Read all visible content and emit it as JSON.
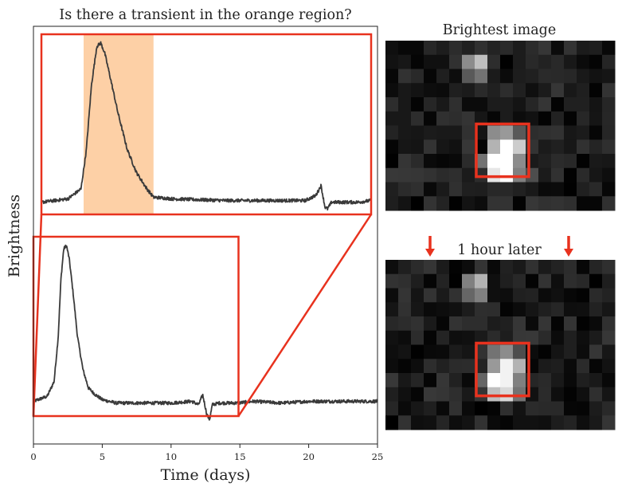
{
  "chart_data": [
    {
      "type": "line",
      "title": "Is there a transient in the orange region?",
      "xlabel": "Time (days)",
      "ylabel": "Brightness",
      "xlim": [
        0,
        25
      ],
      "x_ticks": [
        "0",
        "5",
        "10",
        "15",
        "20",
        "25"
      ],
      "y_ticks": [],
      "grid": false,
      "highlight_region": {
        "x_start": 3.2,
        "x_end": 8.5,
        "color": "#fdd0a6"
      },
      "zoom_box": {
        "x_start": 0,
        "x_end": 14.9,
        "color": "#e8321e"
      },
      "series": [
        {
          "label": "lower curve (full series)",
          "color": "#3a3a3a",
          "x": [
            0,
            1,
            1.5,
            1.8,
            2.0,
            2.2,
            2.4,
            2.6,
            2.9,
            3.2,
            3.6,
            4.0,
            4.5,
            5.0,
            5.5,
            6,
            8,
            10,
            11.5,
            12.0,
            12.3,
            12.6,
            12.8,
            13.0,
            13.5,
            14.9,
            16,
            18,
            20,
            22,
            24,
            25
          ],
          "y": [
            0.06,
            0.09,
            0.18,
            0.45,
            0.8,
            0.98,
            1.0,
            0.92,
            0.7,
            0.45,
            0.25,
            0.14,
            0.1,
            0.07,
            0.06,
            0.05,
            0.05,
            0.05,
            0.06,
            0.04,
            0.1,
            -0.02,
            -0.05,
            0.04,
            0.05,
            0.05,
            0.06,
            0.05,
            0.06,
            0.06,
            0.06,
            0.06
          ]
        },
        {
          "label": "upper curve (zoomed)",
          "color": "#3a3a3a",
          "x": [
            0,
            2.0,
            3.0,
            3.4,
            3.8,
            4.2,
            4.5,
            4.8,
            5.2,
            5.8,
            6.5,
            7.2,
            8.0,
            8.5,
            10,
            14,
            18,
            20,
            20.8,
            21.2,
            21.5,
            21.7,
            22,
            24,
            25
          ],
          "y": [
            0.04,
            0.06,
            0.12,
            0.35,
            0.75,
            0.98,
            1.0,
            0.94,
            0.8,
            0.58,
            0.36,
            0.22,
            0.12,
            0.07,
            0.06,
            0.05,
            0.05,
            0.05,
            0.08,
            0.14,
            0.01,
            0.0,
            0.04,
            0.04,
            0.05
          ]
        }
      ]
    },
    {
      "type": "heatmap",
      "title": "Brightest image",
      "rows": 12,
      "cols": 18,
      "box": {
        "row_start": 6,
        "row_end": 9,
        "col_start": 7,
        "col_end": 11,
        "color": "#e8321e"
      },
      "bright_pixels": [
        {
          "row": 1,
          "col": 6,
          "value": 0.55
        },
        {
          "row": 1,
          "col": 7,
          "value": 0.75
        },
        {
          "row": 2,
          "col": 6,
          "value": 0.35
        },
        {
          "row": 2,
          "col": 7,
          "value": 0.45
        },
        {
          "row": 6,
          "col": 8,
          "value": 0.55
        },
        {
          "row": 6,
          "col": 9,
          "value": 0.6
        },
        {
          "row": 6,
          "col": 10,
          "value": 0.35
        },
        {
          "row": 7,
          "col": 8,
          "value": 0.7
        },
        {
          "row": 7,
          "col": 9,
          "value": 1.0
        },
        {
          "row": 7,
          "col": 10,
          "value": 0.8
        },
        {
          "row": 8,
          "col": 7,
          "value": 0.45
        },
        {
          "row": 8,
          "col": 8,
          "value": 1.0
        },
        {
          "row": 8,
          "col": 9,
          "value": 1.0
        },
        {
          "row": 8,
          "col": 10,
          "value": 0.55
        },
        {
          "row": 9,
          "col": 8,
          "value": 0.9
        },
        {
          "row": 9,
          "col": 9,
          "value": 1.0
        },
        {
          "row": 9,
          "col": 10,
          "value": 0.5
        },
        {
          "row": 9,
          "col": 11,
          "value": 0.3
        }
      ]
    },
    {
      "type": "heatmap",
      "title": "1 hour later",
      "rows": 12,
      "cols": 18,
      "box": {
        "row_start": 6,
        "row_end": 9,
        "col_start": 7,
        "col_end": 11,
        "color": "#e8321e"
      },
      "arrow_color": "#e8321e",
      "bright_pixels": [
        {
          "row": 1,
          "col": 6,
          "value": 0.5
        },
        {
          "row": 1,
          "col": 7,
          "value": 0.7
        },
        {
          "row": 2,
          "col": 6,
          "value": 0.4
        },
        {
          "row": 2,
          "col": 7,
          "value": 0.5
        },
        {
          "row": 6,
          "col": 8,
          "value": 0.45
        },
        {
          "row": 6,
          "col": 9,
          "value": 0.55
        },
        {
          "row": 6,
          "col": 10,
          "value": 0.3
        },
        {
          "row": 7,
          "col": 8,
          "value": 0.6
        },
        {
          "row": 7,
          "col": 9,
          "value": 0.95
        },
        {
          "row": 7,
          "col": 10,
          "value": 0.7
        },
        {
          "row": 8,
          "col": 7,
          "value": 0.4
        },
        {
          "row": 8,
          "col": 8,
          "value": 1.0
        },
        {
          "row": 8,
          "col": 9,
          "value": 0.95
        },
        {
          "row": 8,
          "col": 10,
          "value": 0.5
        },
        {
          "row": 9,
          "col": 8,
          "value": 0.75
        },
        {
          "row": 9,
          "col": 9,
          "value": 0.85
        },
        {
          "row": 9,
          "col": 10,
          "value": 0.45
        }
      ]
    }
  ]
}
